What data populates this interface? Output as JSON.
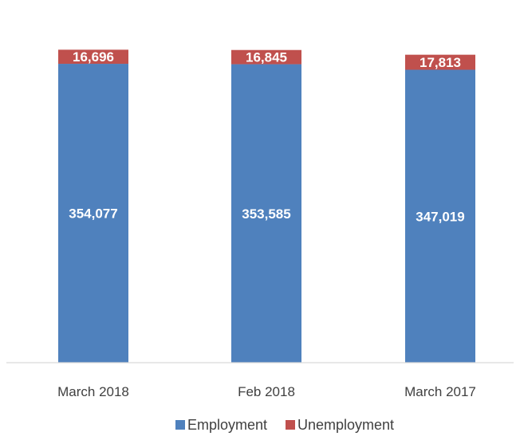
{
  "chart_data": {
    "type": "bar",
    "stacked": true,
    "categories": [
      "March 2018",
      "Feb 2018",
      "March 2017"
    ],
    "series": [
      {
        "name": "Employment",
        "color": "#4F81BD",
        "values": [
          354077,
          353585,
          347019
        ],
        "labels": [
          "354,077",
          "353,585",
          "347,019"
        ]
      },
      {
        "name": "Unemployment",
        "color": "#C0504D",
        "values": [
          16696,
          16845,
          17813
        ],
        "labels": [
          "16,696",
          "16,845",
          "17,813"
        ]
      }
    ],
    "title": "",
    "xlabel": "",
    "ylabel": "",
    "ylim": [
      0,
      390000
    ],
    "grid": false,
    "legend": "bottom"
  }
}
